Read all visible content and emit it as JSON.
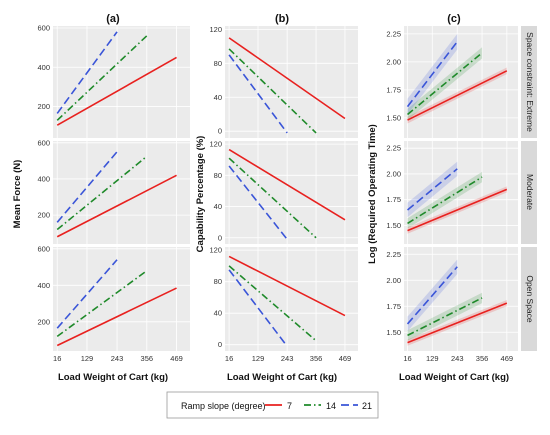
{
  "figure": {
    "column_labels": [
      "(a)",
      "(b)",
      "(c)"
    ],
    "row_labels": [
      "Space constraint: Extreme",
      "Moderate",
      "Open Space"
    ],
    "legend": {
      "title": "Ramp slope (degree)",
      "entries": [
        {
          "label": "7",
          "color": "#e8211f",
          "dash": "solid"
        },
        {
          "label": "14",
          "color": "#1f8a2a",
          "dash": "dashdot"
        },
        {
          "label": "21",
          "color": "#3a55d8",
          "dash": "dash"
        }
      ]
    }
  },
  "chart_data": [
    {
      "type": "line",
      "panel": "(a)",
      "ylabel": "Mean Force (N)",
      "xlabel": "Load Weight of Cart (kg)",
      "x_ticks": [
        16,
        129,
        243,
        356,
        469
      ],
      "y_ticks": [
        200,
        400,
        600
      ],
      "xlim": [
        0,
        520
      ],
      "ylim": [
        40,
        610
      ],
      "facets": [
        {
          "row": "Space constraint: Extreme",
          "series": [
            {
              "name": "7",
              "x": [
                16,
                469
              ],
              "y": [
                105,
                450
              ]
            },
            {
              "name": "14",
              "x": [
                16,
                356
              ],
              "y": [
                130,
                560
              ]
            },
            {
              "name": "21",
              "x": [
                16,
                243
              ],
              "y": [
                165,
                580
              ]
            }
          ]
        },
        {
          "row": "Moderate",
          "series": [
            {
              "name": "7",
              "x": [
                16,
                469
              ],
              "y": [
                80,
                420
              ]
            },
            {
              "name": "14",
              "x": [
                16,
                356
              ],
              "y": [
                120,
                525
              ]
            },
            {
              "name": "21",
              "x": [
                16,
                243
              ],
              "y": [
                160,
                550
              ]
            }
          ]
        },
        {
          "row": "Open Space",
          "series": [
            {
              "name": "7",
              "x": [
                16,
                469
              ],
              "y": [
                70,
                385
              ]
            },
            {
              "name": "14",
              "x": [
                16,
                356
              ],
              "y": [
                120,
                480
              ]
            },
            {
              "name": "21",
              "x": [
                16,
                243
              ],
              "y": [
                165,
                540
              ]
            }
          ]
        }
      ]
    },
    {
      "type": "line",
      "panel": "(b)",
      "ylabel": "Capability Percentage (%)",
      "xlabel": "Load Weight of Cart (kg)",
      "x_ticks": [
        16,
        129,
        243,
        356,
        469
      ],
      "y_ticks": [
        0,
        40,
        80,
        120
      ],
      "xlim": [
        0,
        520
      ],
      "ylim": [
        -8,
        124
      ],
      "facets": [
        {
          "row": "Space constraint: Extreme",
          "series": [
            {
              "name": "7",
              "x": [
                16,
                469
              ],
              "y": [
                110,
                15
              ]
            },
            {
              "name": "14",
              "x": [
                16,
                356
              ],
              "y": [
                97,
                -2
              ]
            },
            {
              "name": "21",
              "x": [
                16,
                243
              ],
              "y": [
                90,
                -2
              ]
            }
          ]
        },
        {
          "row": "Moderate",
          "series": [
            {
              "name": "7",
              "x": [
                16,
                469
              ],
              "y": [
                113,
                23
              ]
            },
            {
              "name": "14",
              "x": [
                16,
                356
              ],
              "y": [
                102,
                0
              ]
            },
            {
              "name": "21",
              "x": [
                16,
                243
              ],
              "y": [
                92,
                -2
              ]
            }
          ]
        },
        {
          "row": "Open Space",
          "series": [
            {
              "name": "7",
              "x": [
                16,
                469
              ],
              "y": [
                112,
                37
              ]
            },
            {
              "name": "14",
              "x": [
                16,
                356
              ],
              "y": [
                100,
                5
              ]
            },
            {
              "name": "21",
              "x": [
                16,
                243
              ],
              "y": [
                95,
                -2
              ]
            }
          ]
        }
      ]
    },
    {
      "type": "line",
      "panel": "(c)",
      "ylabel": "Log (Required Operating Time)",
      "xlabel": "Load Weight of Cart (kg)",
      "x_ticks": [
        16,
        129,
        243,
        356,
        469
      ],
      "y_tick_labels": [
        "1.50",
        "1.75",
        "2.00",
        "2.25"
      ],
      "y_ticks": [
        1.5,
        1.75,
        2.0,
        2.25
      ],
      "xlim": [
        0,
        520
      ],
      "ylim": [
        1.32,
        2.32
      ],
      "facets": [
        {
          "row": "Space constraint: Extreme",
          "series": [
            {
              "name": "7",
              "x": [
                16,
                469
              ],
              "y": [
                1.48,
                1.92
              ],
              "band": 0.03
            },
            {
              "name": "14",
              "x": [
                16,
                356
              ],
              "y": [
                1.53,
                2.08
              ],
              "band": 0.05
            },
            {
              "name": "21",
              "x": [
                16,
                243
              ],
              "y": [
                1.6,
                2.18
              ],
              "band": 0.07
            }
          ]
        },
        {
          "row": "Moderate",
          "series": [
            {
              "name": "7",
              "x": [
                16,
                469
              ],
              "y": [
                1.45,
                1.85
              ],
              "band": 0.03
            },
            {
              "name": "14",
              "x": [
                16,
                356
              ],
              "y": [
                1.52,
                1.97
              ],
              "band": 0.05
            },
            {
              "name": "21",
              "x": [
                16,
                243
              ],
              "y": [
                1.65,
                2.05
              ],
              "band": 0.07
            }
          ]
        },
        {
          "row": "Open Space",
          "series": [
            {
              "name": "7",
              "x": [
                16,
                469
              ],
              "y": [
                1.4,
                1.78
              ],
              "band": 0.03
            },
            {
              "name": "14",
              "x": [
                16,
                356
              ],
              "y": [
                1.47,
                1.83
              ],
              "band": 0.05
            },
            {
              "name": "21",
              "x": [
                16,
                243
              ],
              "y": [
                1.58,
                2.13
              ],
              "band": 0.07
            }
          ]
        }
      ]
    }
  ]
}
